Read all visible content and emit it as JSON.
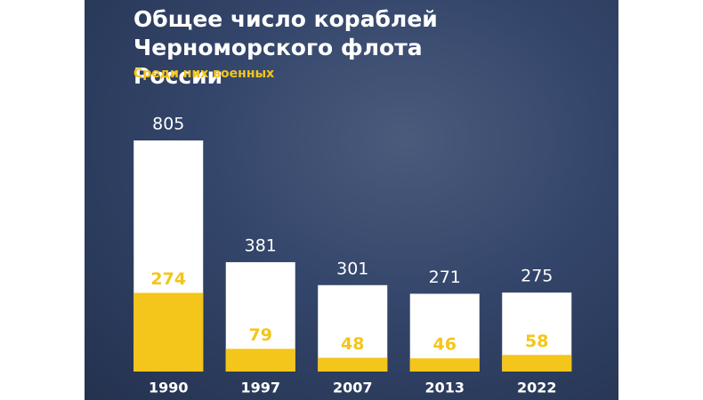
{
  "chart_data": {
    "type": "bar",
    "categories": [
      "1990",
      "1997",
      "2007",
      "2013",
      "2022"
    ],
    "series": [
      {
        "name": "Общее число кораблей Черноморского флота России",
        "color": "#ffffff",
        "values": [
          805,
          381,
          301,
          271,
          275
        ]
      },
      {
        "name": "Среди них военных",
        "color": "#f4c51a",
        "values": [
          274,
          79,
          48,
          46,
          58
        ]
      }
    ]
  }
}
